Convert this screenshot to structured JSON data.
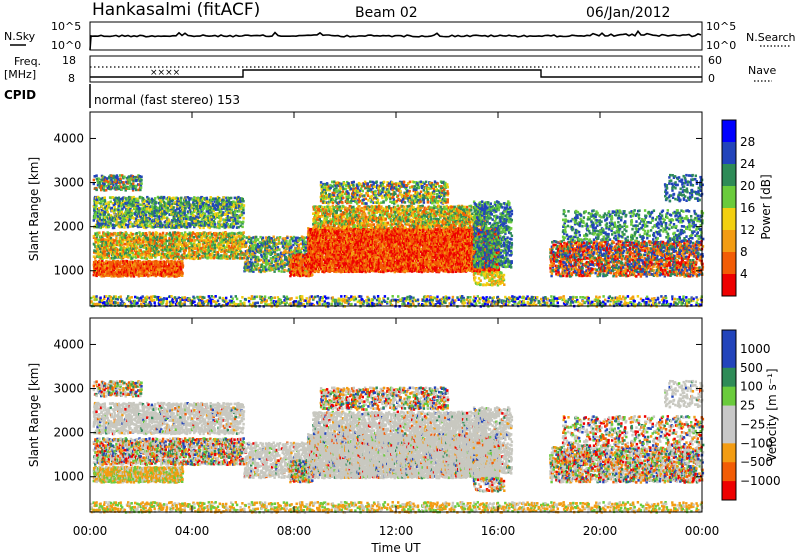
{
  "header": {
    "title": "Hankasalmi (fitACF)",
    "beam": "Beam 02",
    "date": "06/Jan/2012"
  },
  "noise_panel": {
    "left_label": "N.Sky",
    "right_label": "N.Search",
    "left_ticks": [
      "10^5",
      "10^0"
    ],
    "right_ticks": [
      "10^5",
      "10^0"
    ]
  },
  "freq_panel": {
    "left_label_line1": "Freq.",
    "left_label_line2": "[MHz]",
    "left_ticks": [
      "18",
      "8"
    ],
    "right_label": "Nave",
    "right_ticks": [
      "60",
      "0"
    ],
    "cpid_label": "CPID",
    "cpid_text": "normal (fast stereo) 153"
  },
  "colors": {
    "power_scale": [
      "#0000ff",
      "#2244bb",
      "#2e8b57",
      "#6acb3c",
      "#f2cf10",
      "#f39c12",
      "#f25c05",
      "#ee0000"
    ],
    "velocity_scale": [
      "#2244bb",
      "#2e8b57",
      "#6acb3c",
      "#c8c8c8",
      "#c8c8c8",
      "#f39c12",
      "#f25c05",
      "#ee0000"
    ],
    "gray_scatter": "#c0c0b8"
  },
  "chart_data": [
    {
      "type": "heatmap",
      "name": "power",
      "ylabel": "Slant Range [km]",
      "yticks": [
        "4000",
        "3000",
        "2000",
        "1000"
      ],
      "ylim": [
        200,
        4600
      ],
      "colorbar_label": "Power [dB]",
      "colorbar_ticks": [
        "28",
        "24",
        "20",
        "16",
        "12",
        "8",
        "4"
      ]
    },
    {
      "type": "heatmap",
      "name": "velocity",
      "ylabel": "Slant Range [km]",
      "yticks": [
        "4000",
        "3000",
        "2000",
        "1000"
      ],
      "ylim": [
        200,
        4600
      ],
      "colorbar_label": "Velocity [m s⁻¹]",
      "colorbar_ticks": [
        "1000",
        "500",
        "100",
        "25",
        "−25",
        "−100",
        "−500",
        "−1000"
      ]
    }
  ],
  "xaxis": {
    "xlabel": "Time UT",
    "xticks": [
      "00:00",
      "04:00",
      "08:00",
      "12:00",
      "16:00",
      "20:00",
      "00:00"
    ]
  }
}
